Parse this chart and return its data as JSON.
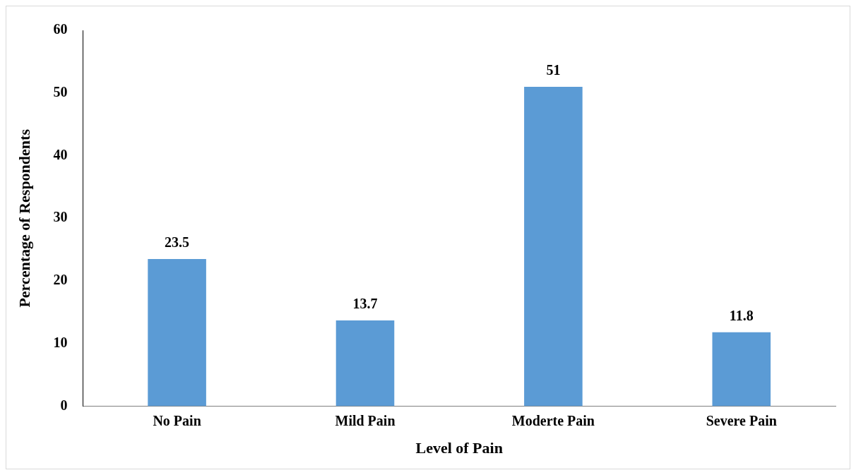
{
  "chart_data": {
    "type": "bar",
    "xlabel": "Level of Pain",
    "ylabel": "Percentage of Respondents",
    "categories": [
      "No Pain",
      "Mild Pain",
      "Moderte Pain",
      "Severe Pain"
    ],
    "values": [
      23.5,
      13.7,
      51,
      11.8
    ],
    "color": "#5b9bd5",
    "ylim": [
      0,
      60
    ],
    "yticks": [
      0,
      10,
      20,
      30,
      40,
      50,
      60
    ],
    "grid": false,
    "legend": false,
    "data_labels": true
  }
}
